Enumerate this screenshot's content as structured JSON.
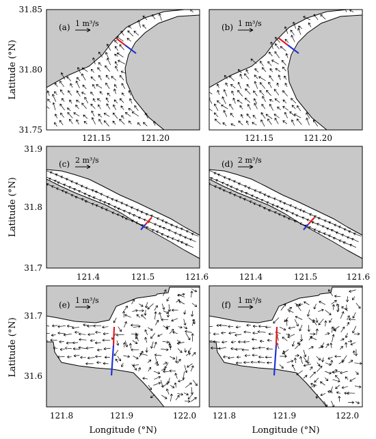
{
  "figure": {
    "rows": [
      {
        "y_ticks": [
          "31.85",
          "31.80",
          "31.75"
        ],
        "x_ticks": [
          "121.15",
          "121.20"
        ],
        "y_title": "Latitude (°N)",
        "panels": [
          {
            "label": "(a)",
            "scale": "1 m³/s"
          },
          {
            "label": "(b)",
            "scale": "1 m³/s"
          }
        ]
      },
      {
        "y_ticks": [
          "31.9",
          "31.8",
          "31.7"
        ],
        "x_ticks": [
          "121.4",
          "121.5",
          "121.6"
        ],
        "y_title": "Latitude (°N)",
        "panels": [
          {
            "label": "(c)",
            "scale": "2 m³/s"
          },
          {
            "label": "(d)",
            "scale": "2 m³/s"
          }
        ]
      },
      {
        "y_ticks": [
          "31.7",
          "31.6"
        ],
        "x_ticks": [
          "121.8",
          "121.9",
          "122.0"
        ],
        "y_title": "Latitude (°N)",
        "x_title": "Longitude (°N)",
        "panels": [
          {
            "label": "(e)",
            "scale": "1 m³/s"
          },
          {
            "label": "(f)",
            "scale": "1 m³/s"
          }
        ]
      }
    ],
    "colors": {
      "land": "#c8c8c8",
      "water": "#ffffff",
      "section_red": "#e41a1c",
      "section_blue": "#1f33d6",
      "arrows": "#000000"
    }
  }
}
